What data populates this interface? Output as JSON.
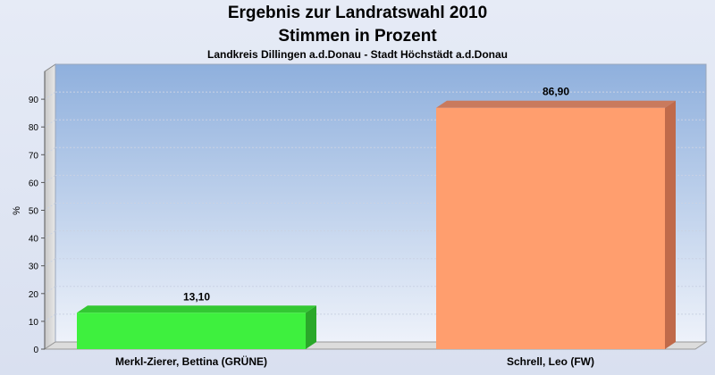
{
  "chart_data": {
    "type": "bar",
    "title": "Ergebnis zur Landratswahl 2010",
    "subtitle": "Stimmen in Prozent",
    "caption": "Landkreis Dillingen a.d.Donau - Stadt Höchstädt a.d.Donau",
    "ylabel": "%",
    "ylim": [
      0,
      100
    ],
    "yticks": [
      0,
      10,
      20,
      30,
      40,
      50,
      60,
      70,
      80,
      90
    ],
    "grid": true,
    "categories": [
      "Merkl-Zierer, Bettina (GRÜNE)",
      "Schrell, Leo (FW)"
    ],
    "values": [
      13.1,
      86.9
    ],
    "value_labels": [
      "13,10",
      "86,90"
    ],
    "colors": [
      "#3ef03e",
      "#ff9e6e"
    ]
  }
}
